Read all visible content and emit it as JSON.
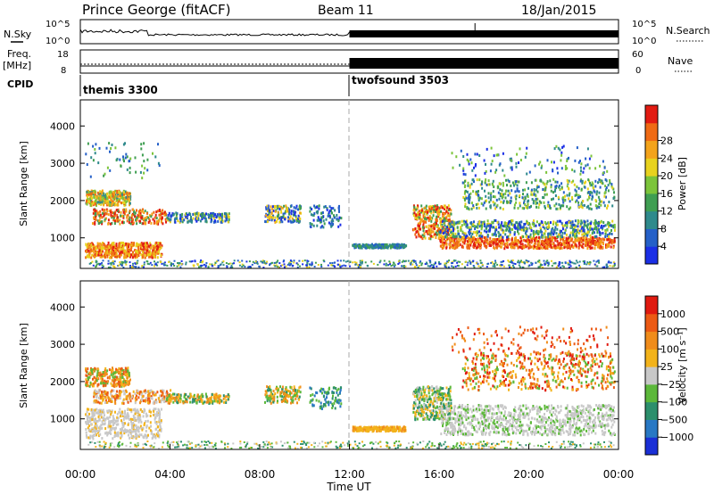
{
  "header": {
    "station": "Prince George (fitACF)",
    "beam": "Beam 11",
    "date": "18/Jan/2015"
  },
  "status_panels": {
    "nsky_label": "N.Sky",
    "nsky_ticks": [
      "10^5",
      "10^0"
    ],
    "nsearch_label": "N.Search",
    "nsearch_ticks": [
      "10^5",
      "10^0"
    ],
    "freq_label": "Freq.",
    "freq_unit": "[MHz]",
    "freq_ticks": [
      "18",
      "8"
    ],
    "nave_label": "Nave",
    "nave_ticks": [
      "60",
      "0"
    ],
    "cpid_label": "CPID",
    "cpid_segments": [
      {
        "name": "themis 3300",
        "start_hour": 0,
        "end_hour": 12
      },
      {
        "name": "twofsound 3503",
        "start_hour": 12,
        "end_hour": 24
      }
    ]
  },
  "chart_data": [
    {
      "type": "heatmap",
      "panel": "power",
      "ylabel": "Slant Range [km]",
      "xlim": [
        0,
        24
      ],
      "ylim": [
        180,
        4700
      ],
      "yticks": [
        "1000",
        "2000",
        "3000",
        "4000"
      ],
      "colorbar": {
        "label": "Power [dB]",
        "ticks": [
          "4",
          "8",
          "12",
          "16",
          "20",
          "24",
          "28"
        ],
        "colors": [
          "#1b2fe6",
          "#2560c8",
          "#2f8a8c",
          "#3f9e52",
          "#7cc43a",
          "#e8d21e",
          "#f3a31b",
          "#ef6a14",
          "#e21b12"
        ]
      }
    },
    {
      "type": "heatmap",
      "panel": "velocity",
      "ylabel": "Slant Range [km]",
      "xlabel": "Time UT",
      "xlim": [
        0,
        24
      ],
      "ylim": [
        180,
        4700
      ],
      "xticks": [
        "00:00",
        "04:00",
        "08:00",
        "12:00",
        "16:00",
        "20:00",
        "00:00"
      ],
      "yticks": [
        "1000",
        "2000",
        "3000",
        "4000"
      ],
      "colorbar": {
        "label": "Velocity [m s⁻¹]",
        "ticks": [
          "1000",
          "500",
          "100",
          "25",
          "−25",
          "−100",
          "−500",
          "−1000"
        ],
        "colors": [
          "#1a2fd6",
          "#2878c4",
          "#2c8f6c",
          "#5cb83a",
          "#c8c8c8",
          "#f3b31b",
          "#f08c1b",
          "#ec5a14",
          "#e01a10"
        ]
      }
    }
  ]
}
